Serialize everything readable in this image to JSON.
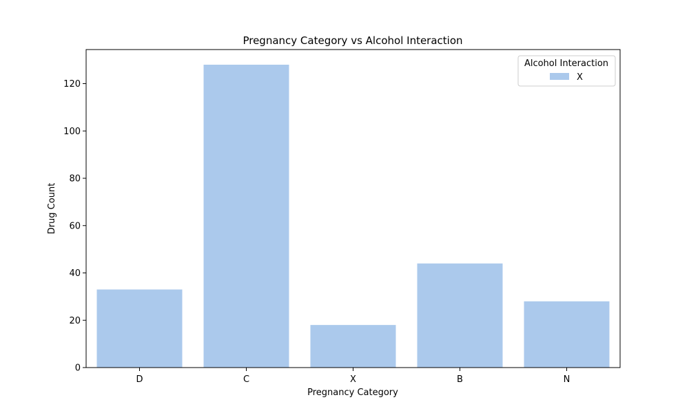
{
  "chart_data": {
    "type": "bar",
    "title": "Pregnancy Category vs Alcohol Interaction",
    "xlabel": "Pregnancy Category",
    "ylabel": "Drug Count",
    "categories": [
      "D",
      "C",
      "X",
      "B",
      "N"
    ],
    "series": [
      {
        "name": "X",
        "values": [
          33,
          128,
          18,
          44,
          28
        ],
        "color": "#abc9ec"
      }
    ],
    "ylim": [
      0,
      134.4
    ],
    "yticks": [
      0,
      20,
      40,
      60,
      80,
      100,
      120
    ],
    "grid": false,
    "legend": {
      "title": "Alcohol Interaction",
      "position": "top-right"
    }
  }
}
